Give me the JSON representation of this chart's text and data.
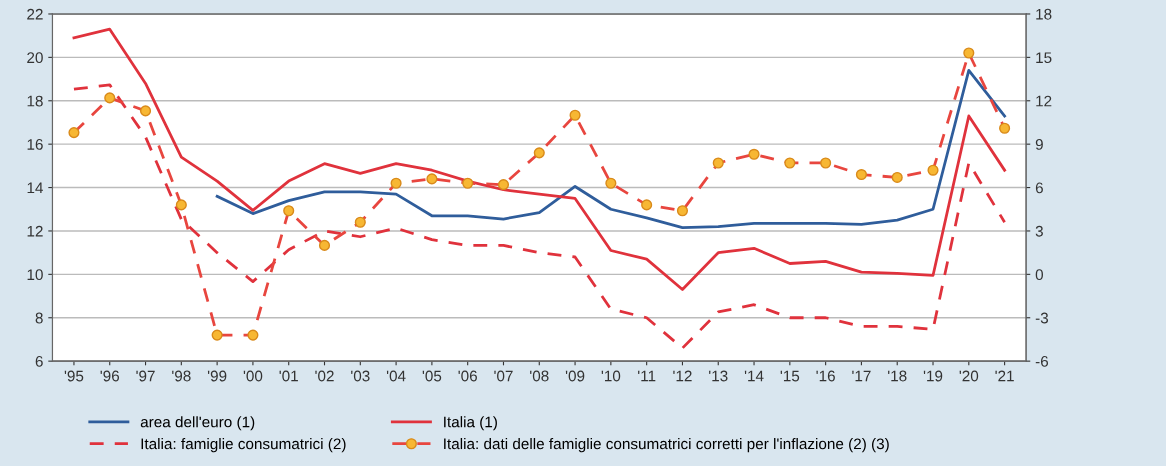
{
  "chart_data": {
    "type": "line",
    "categories": [
      "'95",
      "'96",
      "'97",
      "'98",
      "'99",
      "'00",
      "'01",
      "'02",
      "'03",
      "'04",
      "'05",
      "'06",
      "'07",
      "'08",
      "'09",
      "'10",
      "'11",
      "'12",
      "'13",
      "'14",
      "'15",
      "'16",
      "'17",
      "'18",
      "'19",
      "'20",
      "'21"
    ],
    "ylim": [
      6,
      22
    ],
    "yticks": [
      6,
      8,
      10,
      12,
      14,
      16,
      18,
      20,
      22
    ],
    "y2lim": [
      -6,
      18
    ],
    "y2ticks": [
      {
        "value": -6,
        "label": "-6"
      },
      {
        "value": -3,
        "label": "-3"
      },
      0,
      3,
      6,
      9,
      12,
      15,
      18
    ],
    "grid": "y",
    "legend": "bottom",
    "marker": "none",
    "line_style": "solid",
    "series": [
      {
        "name": "area dell'euro (1)",
        "color": "#2f5d9b",
        "values": [
          null,
          null,
          null,
          null,
          13.6,
          12.8,
          13.4,
          13.8,
          13.8,
          13.7,
          12.7,
          12.7,
          12.55,
          12.85,
          14.05,
          13.0,
          12.6,
          12.15,
          12.2,
          12.35,
          12.35,
          12.35,
          12.3,
          12.5,
          13.0,
          19.4,
          17.3
        ]
      },
      {
        "name": "Italia (1)",
        "color": "#e0323c",
        "values": [
          20.9,
          21.3,
          18.8,
          15.4,
          14.3,
          12.95,
          14.3,
          15.1,
          14.65,
          15.1,
          14.8,
          14.3,
          13.9,
          13.7,
          13.5,
          11.1,
          10.7,
          9.3,
          11.0,
          11.2,
          10.5,
          10.6,
          10.1,
          10.05,
          9.95,
          17.3,
          14.8
        ]
      },
      {
        "name": "Italia: famiglie consumatrici (2)",
        "color": "#e0323c",
        "axis": "y2",
        "line_style": "dashed",
        "values": [
          12.8,
          13.1,
          9.5,
          3.8,
          1.5,
          -0.5,
          1.7,
          3.0,
          2.6,
          3.2,
          2.4,
          2.0,
          2.0,
          1.5,
          1.2,
          -2.4,
          -3.0,
          -5.1,
          -2.6,
          -2.1,
          -3.0,
          -3.0,
          -3.6,
          -3.6,
          -3.8,
          7.7,
          3.6
        ]
      },
      {
        "name": "Italia: dati delle famiglie consumatrici corretti per l'inflazione (2) (3)",
        "color": "#e8463f",
        "axis": "y2",
        "line_style": "dashed",
        "marker": "circle",
        "values": [
          9.8,
          12.2,
          11.3,
          4.8,
          -4.2,
          -4.2,
          4.4,
          2.0,
          3.6,
          6.3,
          6.6,
          6.3,
          6.2,
          8.4,
          11.0,
          6.3,
          4.8,
          4.4,
          7.7,
          8.3,
          7.7,
          7.7,
          6.9,
          6.7,
          7.2,
          15.3,
          10.1
        ]
      }
    ]
  }
}
